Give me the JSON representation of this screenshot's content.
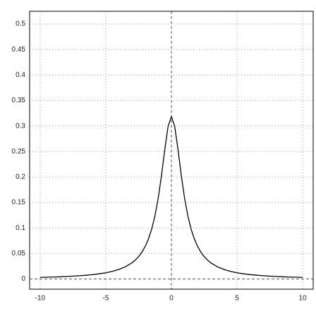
{
  "chart_data": {
    "type": "line",
    "x": [
      -10,
      -9.5,
      -9,
      -8.5,
      -8,
      -7.5,
      -7,
      -6.5,
      -6,
      -5.5,
      -5,
      -4.5,
      -4,
      -3.5,
      -3,
      -2.75,
      -2.5,
      -2.25,
      -2,
      -1.75,
      -1.5,
      -1.25,
      -1,
      -0.75,
      -0.5,
      -0.25,
      0,
      0.25,
      0.5,
      0.75,
      1,
      1.25,
      1.5,
      1.75,
      2,
      2.25,
      2.5,
      2.75,
      3,
      3.5,
      4,
      4.5,
      5,
      5.5,
      6,
      6.5,
      7,
      7.5,
      8,
      8.5,
      9,
      9.5,
      10
    ],
    "series": [
      {
        "color": "#000000",
        "values": [
          0.0032,
          0.0035,
          0.0039,
          0.0043,
          0.0049,
          0.0056,
          0.0064,
          0.0074,
          0.0086,
          0.0102,
          0.0122,
          0.015,
          0.0187,
          0.024,
          0.0318,
          0.0372,
          0.0439,
          0.0525,
          0.0637,
          0.0784,
          0.0979,
          0.1242,
          0.1592,
          0.2037,
          0.2546,
          0.2996,
          0.3183,
          0.2996,
          0.2546,
          0.2037,
          0.1592,
          0.1242,
          0.0979,
          0.0784,
          0.0637,
          0.0525,
          0.0439,
          0.0372,
          0.0318,
          0.024,
          0.0187,
          0.015,
          0.0122,
          0.0102,
          0.0086,
          0.0074,
          0.0064,
          0.0056,
          0.0049,
          0.0043,
          0.0039,
          0.0035,
          0.0032
        ]
      }
    ],
    "xlim": [
      -10.8,
      10.8
    ],
    "ylim": [
      -0.02,
      0.525
    ],
    "xticks": [
      -10,
      -5,
      0,
      5,
      10
    ],
    "yticks": [
      0,
      0.05,
      0.1,
      0.15,
      0.2,
      0.25,
      0.3,
      0.35,
      0.4,
      0.45,
      0.5
    ],
    "grid": true
  }
}
